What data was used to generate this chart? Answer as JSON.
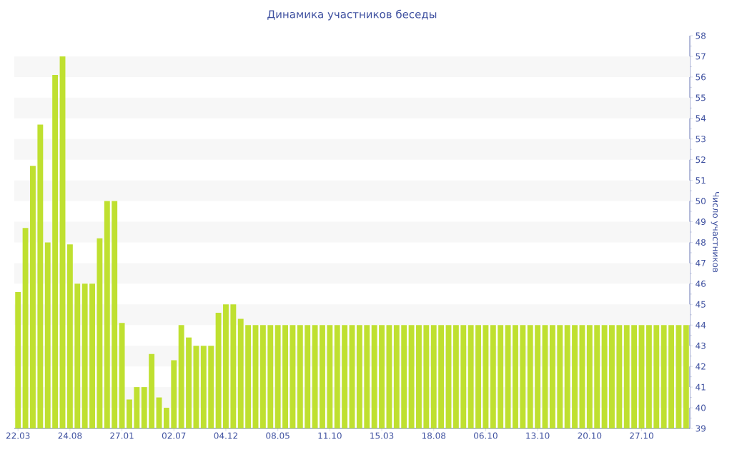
{
  "chart_data": {
    "type": "bar",
    "title": "Динамика участников беседы",
    "ylabel": "Число участников",
    "categories": [
      "22.03",
      null,
      null,
      null,
      null,
      null,
      null,
      "24.08",
      null,
      null,
      null,
      null,
      null,
      null,
      "27.01",
      null,
      null,
      null,
      null,
      null,
      null,
      "02.07",
      null,
      null,
      null,
      null,
      null,
      null,
      "04.12",
      null,
      null,
      null,
      null,
      null,
      null,
      "08.05",
      null,
      null,
      null,
      null,
      null,
      null,
      "11.10",
      null,
      null,
      null,
      null,
      null,
      null,
      "15.03",
      null,
      null,
      null,
      null,
      null,
      null,
      "18.08",
      null,
      null,
      null,
      null,
      null,
      null,
      "06.10",
      null,
      null,
      null,
      null,
      null,
      null,
      "13.10",
      null,
      null,
      null,
      null,
      null,
      null,
      "20.10",
      null,
      null,
      null,
      null,
      null,
      null,
      "27.10",
      null,
      null,
      null,
      null,
      null,
      null
    ],
    "values": [
      45.6,
      48.7,
      51.7,
      53.7,
      48.0,
      56.1,
      57.0,
      47.9,
      46.0,
      46.0,
      46.0,
      48.2,
      50.0,
      50.0,
      44.1,
      40.4,
      41.0,
      41.0,
      42.6,
      40.5,
      40.0,
      42.3,
      44.0,
      43.4,
      43.0,
      43.0,
      43.0,
      44.6,
      45.0,
      45.0,
      44.3,
      44,
      44,
      44,
      44,
      44,
      44,
      44,
      44,
      44,
      44,
      44,
      44,
      44,
      44,
      44,
      44,
      44,
      44,
      44,
      44,
      44,
      44,
      44,
      44,
      44,
      44,
      44,
      44,
      44,
      44,
      44,
      44,
      44,
      44,
      44,
      44,
      44,
      44,
      44,
      44,
      44,
      44,
      44,
      44,
      44,
      44,
      44,
      44,
      44,
      44,
      44,
      44,
      44,
      44,
      44,
      44,
      44,
      44,
      44,
      44
    ],
    "color": "#bfe030",
    "ylim": [
      39,
      58
    ],
    "yticks": [
      39,
      40,
      41,
      42,
      43,
      44,
      45,
      46,
      47,
      48,
      49,
      50,
      51,
      52,
      53,
      54,
      55,
      56,
      57,
      58
    ],
    "grid": false
  }
}
